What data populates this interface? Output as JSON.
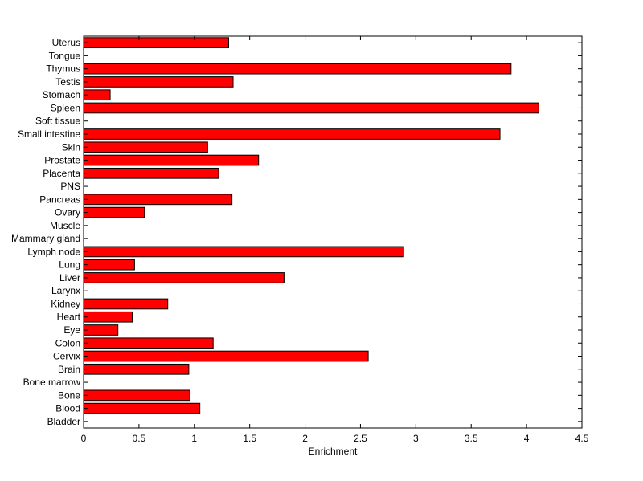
{
  "chart_data": {
    "type": "bar",
    "orientation": "horizontal",
    "title": "",
    "xlabel": "Enrichment",
    "ylabel": "",
    "xlim": [
      0,
      4.5
    ],
    "xticks": [
      0,
      0.5,
      1,
      1.5,
      2,
      2.5,
      3,
      3.5,
      4,
      4.5
    ],
    "xtick_labels": [
      "0",
      "0.5",
      "1",
      "1.5",
      "2",
      "2.5",
      "3",
      "3.5",
      "4",
      "4.5"
    ],
    "bar_color": "#ff0000",
    "edge_color": "#000000",
    "grid": false,
    "legend": "none",
    "categories": [
      "Uterus",
      "Tongue",
      "Thymus",
      "Testis",
      "Stomach",
      "Spleen",
      "Soft tissue",
      "Small intestine",
      "Skin",
      "Prostate",
      "Placenta",
      "PNS",
      "Pancreas",
      "Ovary",
      "Muscle",
      "Mammary gland",
      "Lymph node",
      "Lung",
      "Liver",
      "Larynx",
      "Kidney",
      "Heart",
      "Eye",
      "Colon",
      "Cervix",
      "Brain",
      "Bone marrow",
      "Bone",
      "Blood",
      "Bladder"
    ],
    "values": [
      1.31,
      0,
      3.86,
      1.35,
      0.24,
      4.11,
      0,
      3.76,
      1.12,
      1.58,
      1.22,
      0,
      1.34,
      0.55,
      0,
      0,
      2.89,
      0.46,
      1.81,
      0,
      0.76,
      0.44,
      0.31,
      1.17,
      2.57,
      0.95,
      0,
      0.96,
      1.05,
      0
    ]
  }
}
